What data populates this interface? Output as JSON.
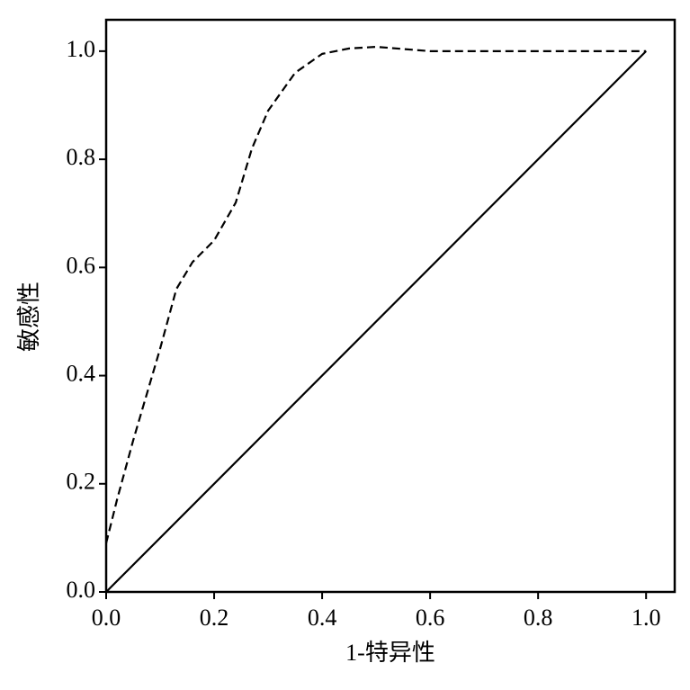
{
  "chart_data": {
    "type": "line",
    "x_label": "1-特异性",
    "y_label": "敏感性",
    "xlim": [
      0,
      1.053
    ],
    "ylim": [
      0,
      1.058
    ],
    "xticks": [
      {
        "value": 0,
        "label": "0.0"
      },
      0.2,
      0.4,
      0.6,
      0.8,
      {
        "value": 1,
        "label": "1.0"
      }
    ],
    "yticks": [
      {
        "value": 0,
        "label": "0.0"
      },
      0.2,
      0.4,
      0.6,
      0.8,
      {
        "value": 1,
        "label": "1.0"
      }
    ],
    "series": [
      {
        "color": "#000000",
        "line_style": "dashed",
        "x": [
          0,
          0.02,
          0.05,
          0.1,
          0.13,
          0.16,
          0.2,
          0.24,
          0.27,
          0.3,
          0.35,
          0.4,
          0.45,
          0.5,
          0.6,
          0.8,
          1.0
        ],
        "values": [
          0.09,
          0.17,
          0.28,
          0.45,
          0.56,
          0.61,
          0.65,
          0.72,
          0.82,
          0.89,
          0.96,
          0.995,
          1.005,
          1.008,
          1.0,
          1.0,
          1.0
        ]
      },
      {
        "color": "#000000",
        "line_style": "solid",
        "x": [
          0,
          1
        ],
        "values": [
          0,
          1
        ]
      }
    ]
  }
}
